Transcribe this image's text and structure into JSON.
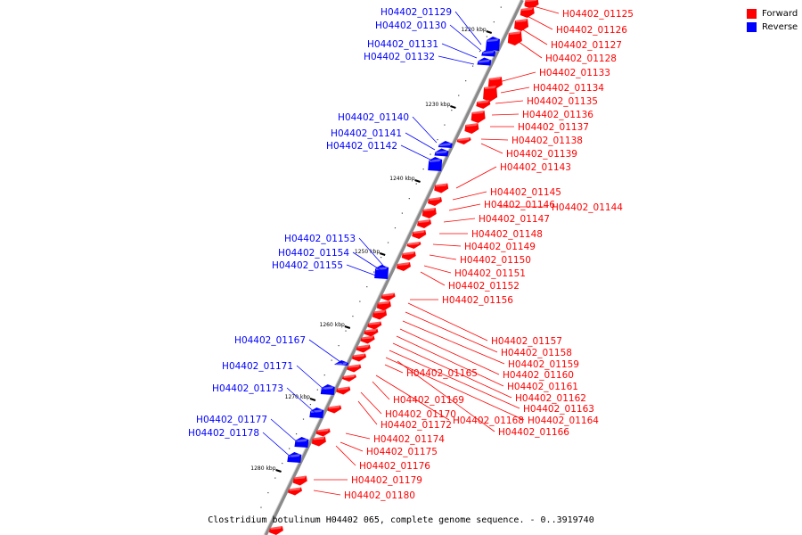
{
  "legend": {
    "forward_label": "Forward",
    "reverse_label": "Reverse",
    "forward_color": "#ff0000",
    "reverse_color": "#0000ff"
  },
  "caption": "Clostridium botulinum H04402 065, complete genome sequence. - 0..3919740",
  "ruler_ticks": [
    "1220 kbp",
    "1230 kbp",
    "1240 kbp",
    "1250 kbp",
    "1260 kbp",
    "1270 kbp",
    "1280 kbp"
  ],
  "reverse_genes": [
    "H04402_01129",
    "H04402_01130",
    "H04402_01131",
    "H04402_01132",
    "H04402_01140",
    "H04402_01141",
    "H04402_01142",
    "H04402_01153",
    "H04402_01154",
    "H04402_01155",
    "H04402_01167",
    "H04402_01171",
    "H04402_01173",
    "H04402_01177",
    "H04402_01178"
  ],
  "forward_genes": [
    "H04402_01125",
    "H04402_01126",
    "H04402_01127",
    "H04402_01128",
    "H04402_01133",
    "H04402_01134",
    "H04402_01135",
    "H04402_01136",
    "H04402_01137",
    "H04402_01138",
    "H04402_01139",
    "H04402_01143",
    "H04402_01145",
    "H04402_01146",
    "H04402_01144",
    "H04402_01147",
    "H04402_01148",
    "H04402_01149",
    "H04402_01150",
    "H04402_01151",
    "H04402_01152",
    "H04402_01156",
    "H04402_01157",
    "H04402_01158",
    "H04402_01159",
    "H04402_01160",
    "H04402_01161",
    "H04402_01162",
    "H04402_01163",
    "H04402_01164",
    "H04402_01165",
    "H04402_01169",
    "H04402_01170",
    "H04402_01168",
    "H04402_01172",
    "H04402_01166",
    "H04402_01174",
    "H04402_01175",
    "H04402_01176",
    "H04402_01179",
    "H04402_01180"
  ]
}
